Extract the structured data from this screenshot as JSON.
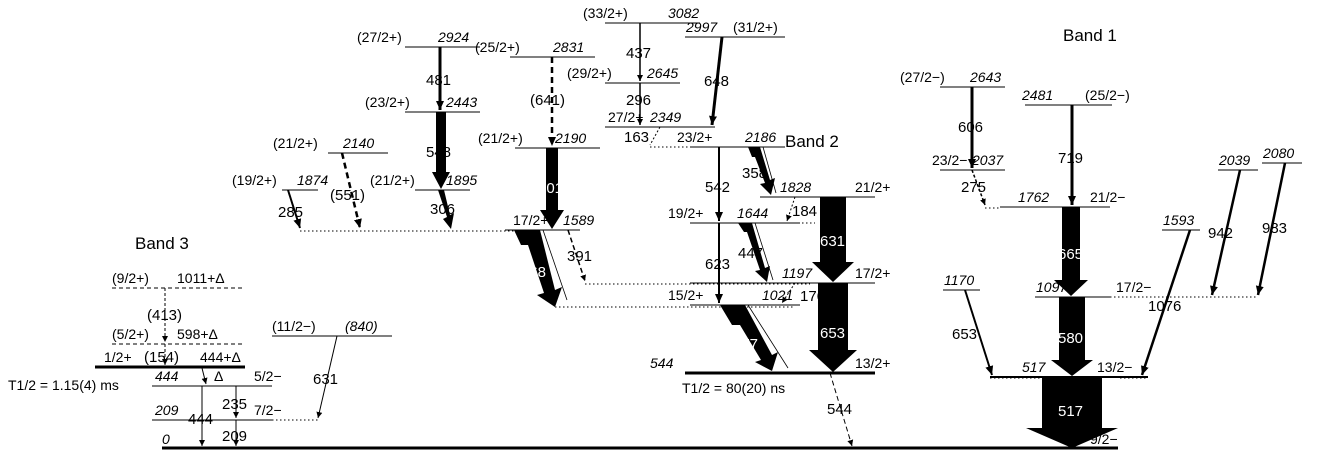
{
  "bands": {
    "band1": "Band 1",
    "band2": "Band 2",
    "band3": "Band 3"
  },
  "lifetimes": {
    "isomer_444": "T1/2 = 1.15(4) ms",
    "isomer_544": "T1/2 = 80(20) ns"
  },
  "levels": {
    "l0": {
      "energy": "0",
      "spin": "9/2−"
    },
    "l209": {
      "energy": "209",
      "spin": "7/2−"
    },
    "l444": {
      "energy": "444",
      "spin": "5/2−"
    },
    "l444d": {
      "energy": "444+Δ",
      "spin": "1/2+"
    },
    "lDelta": {
      "energy": "Δ"
    },
    "l598d": {
      "energy": "598+Δ",
      "spin": "(5/2+)"
    },
    "l1011d": {
      "energy": "1011+Δ",
      "spin": "(9/2+)"
    },
    "l840": {
      "energy": "(840)",
      "spin": "(11/2−)"
    },
    "l517": {
      "energy": "517",
      "spin": "13/2−"
    },
    "l544": {
      "energy": "544",
      "spin": "13/2+"
    },
    "l1021": {
      "energy": "1021",
      "spin": "15/2+"
    },
    "l1197": {
      "energy": "1197",
      "spin": "17/2+"
    },
    "l1589": {
      "energy": "1589",
      "spin": "17/2+"
    },
    "l1644": {
      "energy": "1644",
      "spin": "19/2+"
    },
    "l1828": {
      "energy": "1828",
      "spin": "21/2+"
    },
    "l1874": {
      "energy": "1874",
      "spin": "(19/2+)"
    },
    "l1895": {
      "energy": "1895",
      "spin": "(21/2+)"
    },
    "l2140": {
      "energy": "2140",
      "spin": "(21/2+)"
    },
    "l2186": {
      "energy": "2186",
      "spin": "23/2+"
    },
    "l2190": {
      "energy": "2190",
      "spin": "(21/2+)"
    },
    "l2349": {
      "energy": "2349",
      "spin": "27/2+"
    },
    "l2443": {
      "energy": "2443",
      "spin": "(23/2+)"
    },
    "l2645": {
      "energy": "2645",
      "spin": "(29/2+)"
    },
    "l2831": {
      "energy": "2831",
      "spin": "(25/2+)"
    },
    "l2924": {
      "energy": "2924",
      "spin": "(27/2+)"
    },
    "l2997": {
      "energy": "2997",
      "spin": "(31/2+)"
    },
    "l3082": {
      "energy": "3082",
      "spin": "(33/2+)"
    },
    "l1097": {
      "energy": "1097",
      "spin": "17/2−"
    },
    "l1170": {
      "energy": "1170"
    },
    "l1593": {
      "energy": "1593"
    },
    "l1762": {
      "energy": "1762",
      "spin": "21/2−"
    },
    "l2037": {
      "energy": "2037",
      "spin": "23/2−"
    },
    "l2039": {
      "energy": "2039"
    },
    "l2080": {
      "energy": "2080"
    },
    "l2481": {
      "energy": "2481",
      "spin": "(25/2−)"
    },
    "l2643": {
      "energy": "2643",
      "spin": "(27/2−)"
    }
  },
  "gammas": {
    "g209": "209",
    "g235": "235",
    "g444": "444",
    "g154": "(154)",
    "g413": "(413)",
    "g631a": "631",
    "g517": "517",
    "g544": "544",
    "g477": "477",
    "g653a": "653",
    "g176": "176",
    "g568": "568",
    "g391": "391",
    "g623": "623",
    "g447": "447",
    "g631b": "631",
    "g184": "184",
    "g542": "542",
    "g358": "358",
    "g601": "601",
    "g163": "163",
    "g296": "296",
    "g437": "437",
    "g648": "648",
    "g641": "(641)",
    "g548": "548",
    "g481": "481",
    "g306": "306",
    "g285": "285",
    "g551": "(551)",
    "g580": "580",
    "g653b": "653",
    "g1076": "1076",
    "g665": "665",
    "g942": "942",
    "g983": "983",
    "g275": "275",
    "g719": "719",
    "g606": "606"
  }
}
